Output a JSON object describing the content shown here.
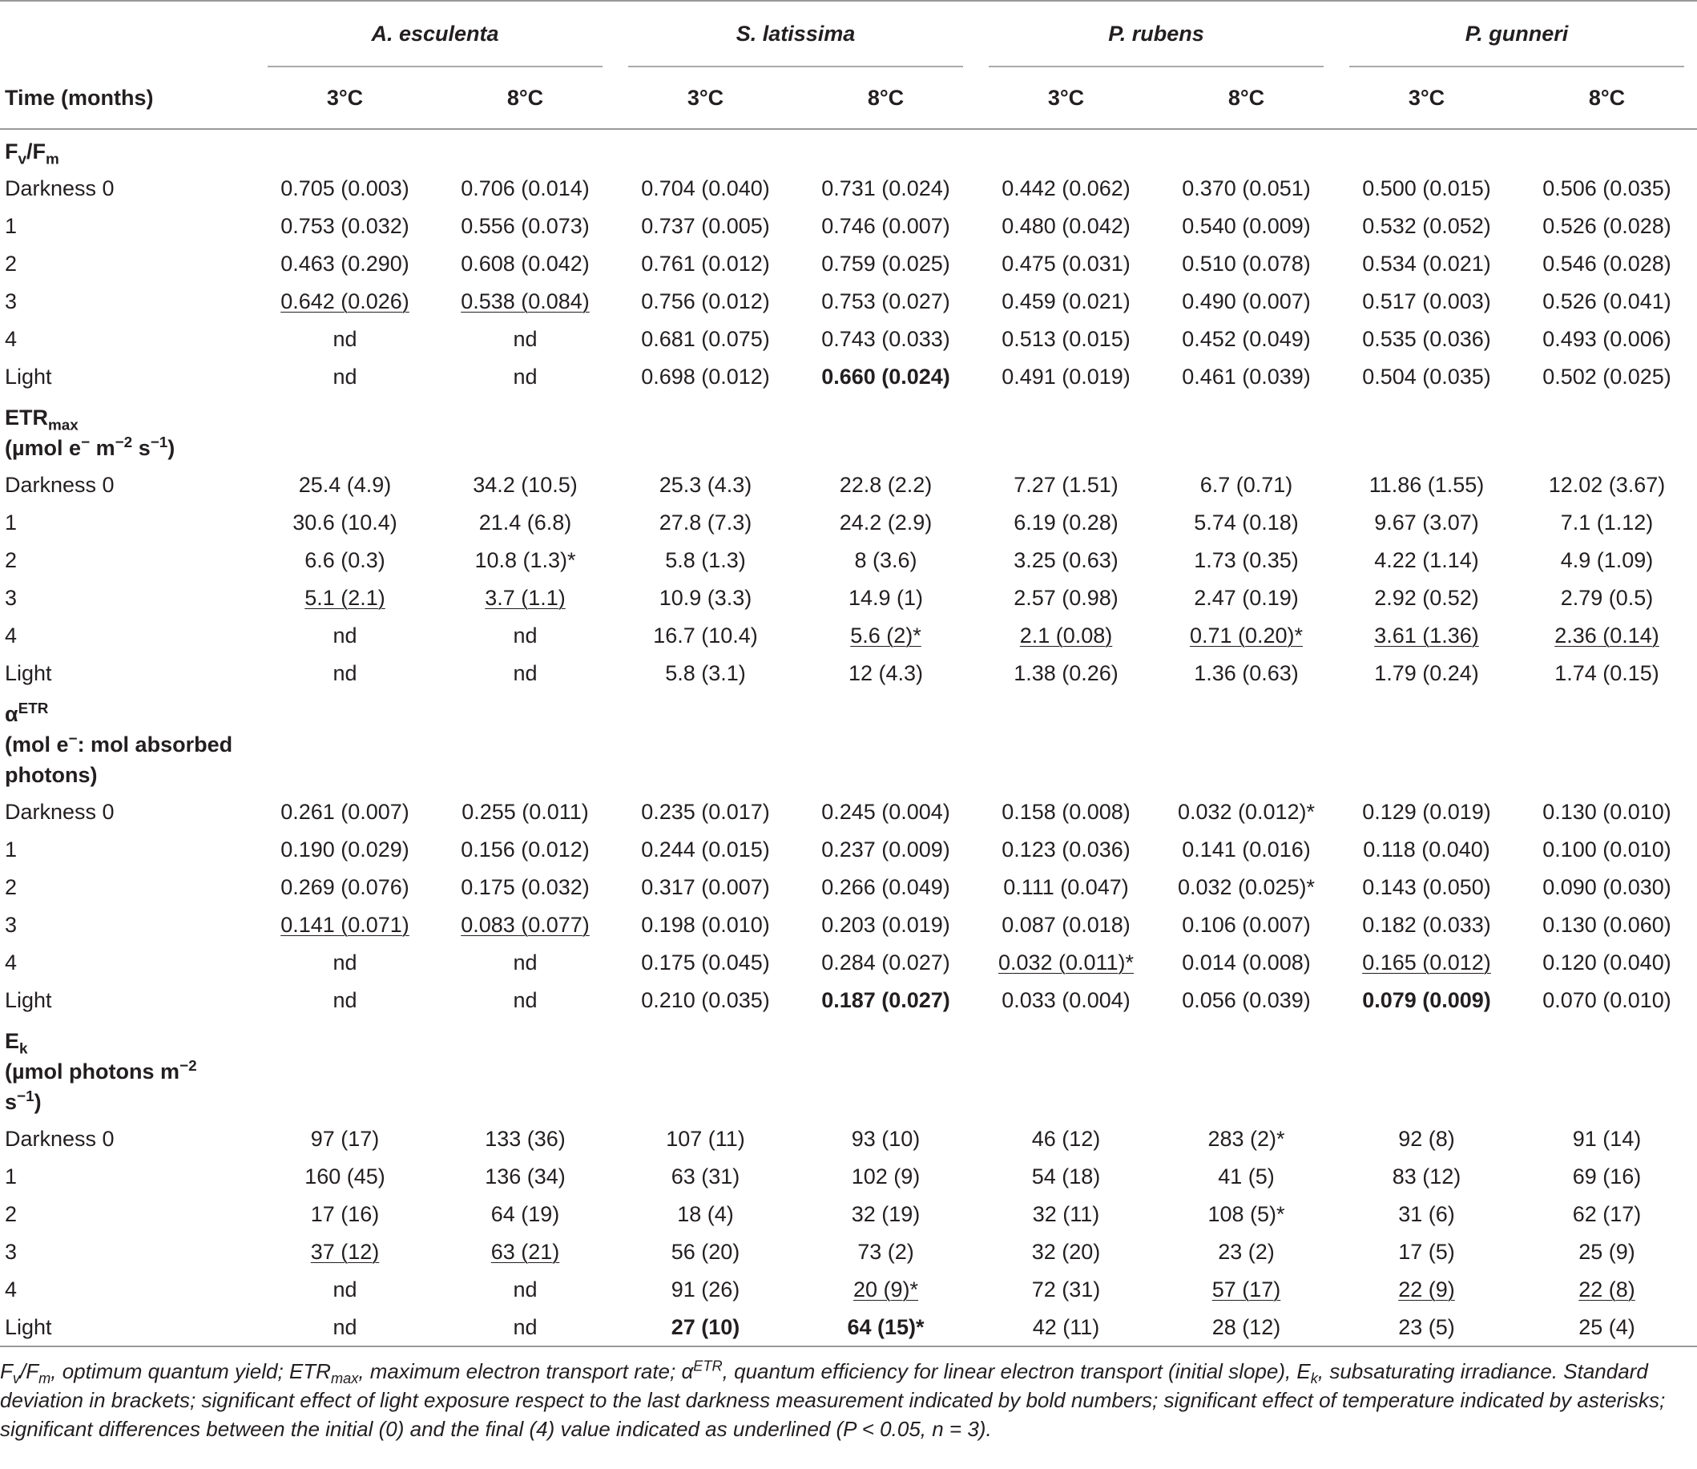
{
  "header": {
    "time_label": "Time (months)",
    "species": [
      "A. esculenta",
      "S. latissima",
      "P. rubens",
      "P. gunneri"
    ],
    "temperatures": [
      "3°C",
      "8°C",
      "3°C",
      "8°C",
      "3°C",
      "8°C",
      "3°C",
      "8°C"
    ]
  },
  "sections": [
    {
      "label": [
        {
          "text": "F"
        },
        {
          "text": "v",
          "sub": true
        },
        {
          "text": "/F"
        },
        {
          "text": "m",
          "sub": true
        }
      ],
      "rows": [
        {
          "label": "Darkness 0",
          "cells": [
            "0.705 (0.003)",
            "0.706 (0.014)",
            "0.704 (0.040)",
            "0.731 (0.024)",
            "0.442 (0.062)",
            "0.370 (0.051)",
            "0.500 (0.015)",
            "0.506 (0.035)"
          ]
        },
        {
          "label": "1",
          "cells": [
            "0.753 (0.032)",
            "0.556 (0.073)",
            "0.737 (0.005)",
            "0.746 (0.007)",
            "0.480 (0.042)",
            "0.540 (0.009)",
            "0.532 (0.052)",
            "0.526 (0.028)"
          ]
        },
        {
          "label": "2",
          "cells": [
            "0.463 (0.290)",
            "0.608 (0.042)",
            "0.761 (0.012)",
            "0.759 (0.025)",
            "0.475 (0.031)",
            "0.510 (0.078)",
            "0.534 (0.021)",
            "0.546 (0.028)"
          ]
        },
        {
          "label": "3",
          "cells": [
            {
              "text": "0.642 (0.026)",
              "underline": true
            },
            {
              "text": "0.538 (0.084)",
              "underline": true
            },
            "0.756 (0.012)",
            "0.753 (0.027)",
            "0.459 (0.021)",
            "0.490 (0.007)",
            "0.517 (0.003)",
            "0.526 (0.041)"
          ]
        },
        {
          "label": "4",
          "cells": [
            "nd",
            "nd",
            "0.681 (0.075)",
            "0.743 (0.033)",
            "0.513 (0.015)",
            "0.452 (0.049)",
            "0.535 (0.036)",
            "0.493 (0.006)"
          ]
        },
        {
          "label": "Light",
          "cells": [
            "nd",
            "nd",
            "0.698 (0.012)",
            {
              "text": "0.660 (0.024)",
              "bold": true
            },
            "0.491 (0.019)",
            "0.461 (0.039)",
            "0.504 (0.035)",
            "0.502 (0.025)"
          ]
        }
      ]
    },
    {
      "label": [
        {
          "text": "ETR"
        },
        {
          "text": "max",
          "sub": true
        }
      ],
      "unit": [
        {
          "text": "(µmol e"
        },
        {
          "text": "−",
          "sup": true
        },
        {
          "text": " m"
        },
        {
          "text": "−2",
          "sup": true
        },
        {
          "text": " s"
        },
        {
          "text": "−1",
          "sup": true
        },
        {
          "text": ")"
        }
      ],
      "rows": [
        {
          "label": "Darkness 0",
          "cells": [
            "25.4 (4.9)",
            "34.2 (10.5)",
            "25.3 (4.3)",
            "22.8 (2.2)",
            "7.27 (1.51)",
            "6.7 (0.71)",
            "11.86 (1.55)",
            "12.02 (3.67)"
          ]
        },
        {
          "label": "1",
          "cells": [
            "30.6 (10.4)",
            "21.4 (6.8)",
            "27.8 (7.3)",
            "24.2 (2.9)",
            "6.19 (0.28)",
            "5.74 (0.18)",
            "9.67 (3.07)",
            "7.1 (1.12)"
          ]
        },
        {
          "label": "2",
          "cells": [
            "6.6 (0.3)",
            "10.8 (1.3)*",
            "5.8 (1.3)",
            "8 (3.6)",
            "3.25 (0.63)",
            "1.73 (0.35)",
            "4.22 (1.14)",
            "4.9 (1.09)"
          ]
        },
        {
          "label": "3",
          "cells": [
            {
              "text": "5.1 (2.1)",
              "underline": true
            },
            {
              "text": "3.7 (1.1)",
              "underline": true
            },
            "10.9 (3.3)",
            "14.9 (1)",
            "2.57 (0.98)",
            "2.47 (0.19)",
            "2.92 (0.52)",
            "2.79 (0.5)"
          ]
        },
        {
          "label": "4",
          "cells": [
            "nd",
            "nd",
            "16.7 (10.4)",
            {
              "text": "5.6 (2)*",
              "underline": true
            },
            {
              "text": "2.1 (0.08)",
              "underline": true
            },
            {
              "text": "0.71 (0.20)*",
              "underline": true
            },
            {
              "text": "3.61 (1.36)",
              "underline": true
            },
            {
              "text": "2.36 (0.14)",
              "underline": true
            }
          ]
        },
        {
          "label": "Light",
          "cells": [
            "nd",
            "nd",
            "5.8 (3.1)",
            "12 (4.3)",
            "1.38 (0.26)",
            "1.36 (0.63)",
            "1.79 (0.24)",
            "1.74 (0.15)"
          ]
        }
      ]
    },
    {
      "label": [
        {
          "text": "α"
        },
        {
          "text": "ETR",
          "sup": true
        }
      ],
      "unit": [
        {
          "text": "(mol e"
        },
        {
          "text": "−",
          "sup": true
        },
        {
          "text": ": mol absorbed photons)"
        }
      ],
      "rows": [
        {
          "label": "Darkness 0",
          "cells": [
            "0.261 (0.007)",
            "0.255 (0.011)",
            "0.235 (0.017)",
            "0.245 (0.004)",
            "0.158 (0.008)",
            "0.032 (0.012)*",
            "0.129 (0.019)",
            "0.130 (0.010)"
          ]
        },
        {
          "label": "1",
          "cells": [
            "0.190 (0.029)",
            "0.156 (0.012)",
            "0.244 (0.015)",
            "0.237 (0.009)",
            "0.123 (0.036)",
            "0.141 (0.016)",
            "0.118 (0.040)",
            "0.100 (0.010)"
          ]
        },
        {
          "label": "2",
          "cells": [
            "0.269 (0.076)",
            "0.175 (0.032)",
            "0.317 (0.007)",
            "0.266 (0.049)",
            "0.111 (0.047)",
            "0.032 (0.025)*",
            "0.143 (0.050)",
            "0.090 (0.030)"
          ]
        },
        {
          "label": "3",
          "cells": [
            {
              "text": "0.141 (0.071)",
              "underline": true
            },
            {
              "text": "0.083 (0.077)",
              "underline": true
            },
            "0.198 (0.010)",
            "0.203 (0.019)",
            "0.087 (0.018)",
            "0.106 (0.007)",
            "0.182 (0.033)",
            "0.130 (0.060)"
          ]
        },
        {
          "label": "4",
          "cells": [
            "nd",
            "nd",
            "0.175 (0.045)",
            "0.284 (0.027)",
            {
              "text": "0.032 (0.011)*",
              "underline": true
            },
            "0.014 (0.008)",
            {
              "text": "0.165 (0.012)",
              "underline": true
            },
            "0.120 (0.040)"
          ]
        },
        {
          "label": "Light",
          "cells": [
            "nd",
            "nd",
            "0.210 (0.035)",
            {
              "text": "0.187 (0.027)",
              "bold": true
            },
            "0.033 (0.004)",
            "0.056 (0.039)",
            {
              "text": "0.079 (0.009)",
              "bold": true
            },
            "0.070 (0.010)"
          ]
        }
      ]
    },
    {
      "label": [
        {
          "text": "E"
        },
        {
          "text": "k",
          "sub": true
        }
      ],
      "unit": [
        {
          "text": "(µmol photons m"
        },
        {
          "text": "−2",
          "sup": true
        },
        {
          "text": " s"
        },
        {
          "text": "−1",
          "sup": true
        },
        {
          "text": ")"
        }
      ],
      "rows": [
        {
          "label": "Darkness 0",
          "cells": [
            "97 (17)",
            "133 (36)",
            "107 (11)",
            "93 (10)",
            "46 (12)",
            "283 (2)*",
            "92 (8)",
            "91 (14)"
          ]
        },
        {
          "label": "1",
          "cells": [
            "160 (45)",
            "136 (34)",
            "63 (31)",
            "102 (9)",
            "54 (18)",
            "41 (5)",
            "83 (12)",
            "69 (16)"
          ]
        },
        {
          "label": "2",
          "cells": [
            "17 (16)",
            "64 (19)",
            "18 (4)",
            "32 (19)",
            "32 (11)",
            "108 (5)*",
            "31 (6)",
            "62 (17)"
          ]
        },
        {
          "label": "3",
          "cells": [
            {
              "text": "37 (12)",
              "underline": true
            },
            {
              "text": "63 (21)",
              "underline": true
            },
            "56 (20)",
            "73 (2)",
            "32 (20)",
            "23 (2)",
            "17 (5)",
            "25 (9)"
          ]
        },
        {
          "label": "4",
          "cells": [
            "nd",
            "nd",
            "91 (26)",
            {
              "text": "20 (9)*",
              "underline": true
            },
            "72 (31)",
            {
              "text": "57 (17)",
              "underline": true
            },
            {
              "text": "22 (9)",
              "underline": true
            },
            {
              "text": "22 (8)",
              "underline": true
            }
          ]
        },
        {
          "label": "Light",
          "cells": [
            "nd",
            "nd",
            {
              "text": "27 (10)",
              "bold": true
            },
            {
              "text": "64 (15)*",
              "bold": true
            },
            "42 (11)",
            "28 (12)",
            "23 (5)",
            "25 (4)"
          ]
        }
      ]
    }
  ],
  "footnote": [
    {
      "text": "F"
    },
    {
      "text": "v",
      "sub": true
    },
    {
      "text": "/F"
    },
    {
      "text": "m",
      "sub": true
    },
    {
      "text": ", optimum quantum yield; ETR"
    },
    {
      "text": "max",
      "sub": true
    },
    {
      "text": ", maximum electron transport rate; α"
    },
    {
      "text": "ETR",
      "sup": true
    },
    {
      "text": ", quantum efficiency for linear electron transport (initial slope), E"
    },
    {
      "text": "k",
      "sub": true
    },
    {
      "text": ", subsaturating irradiance. Standard deviation in brackets; significant effect of light exposure respect to the last darkness measurement indicated by bold numbers; significant effect of temperature indicated by asterisks; significant differences between the initial (0) and the final (4) value indicated as underlined (P < 0.05, n = 3)."
    }
  ]
}
